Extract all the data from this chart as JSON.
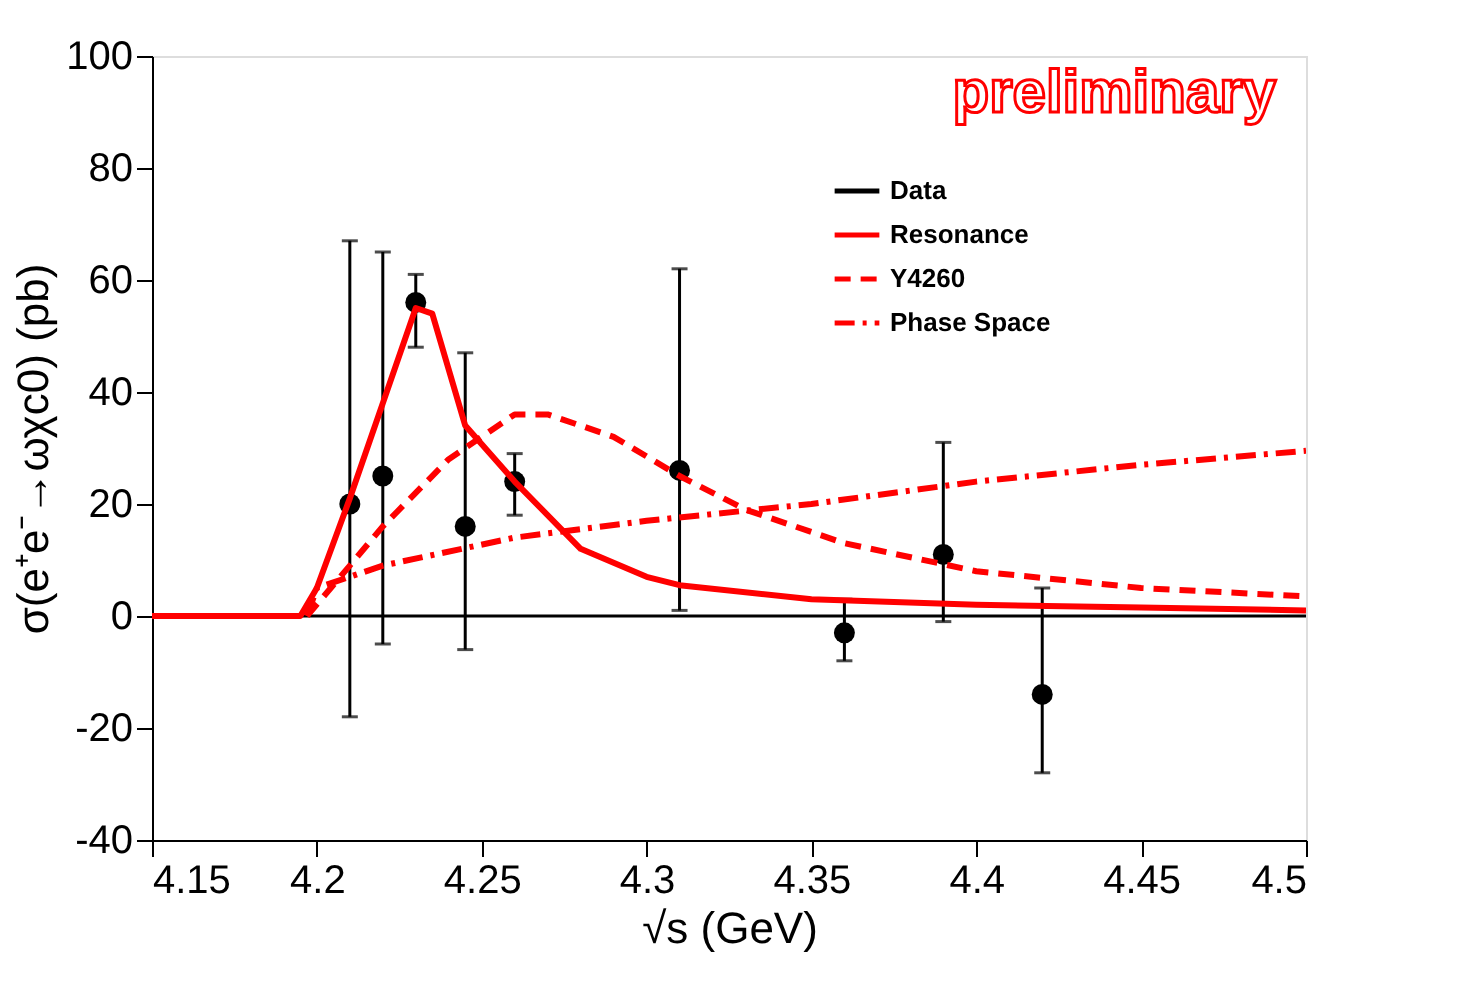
{
  "chart_data": {
    "type": "line",
    "xlabel": "√s (GeV)",
    "ylabel": "σ(e⁺e⁻→ωχc0) (pb)",
    "xlim": [
      4.15,
      4.5
    ],
    "xticks": [
      4.15,
      4.2,
      4.25,
      4.3,
      4.35,
      4.4,
      4.45,
      4.5
    ],
    "ylim": [
      -40,
      100
    ],
    "yticks": [
      -40,
      -20,
      0,
      20,
      40,
      60,
      80,
      100
    ],
    "grid": false,
    "legend": "top right",
    "annotations": [
      "preliminary"
    ],
    "ref_lines": [
      {
        "axis": "y",
        "value": 0,
        "label": null,
        "color": "#000000"
      }
    ],
    "series": [
      {
        "name": "Data",
        "type": "scatter",
        "color": "#000000",
        "marker": "circle",
        "x": [
          4.21,
          4.22,
          4.23,
          4.245,
          4.26,
          4.31,
          4.36,
          4.39,
          4.42
        ],
        "values": [
          20,
          25,
          56,
          16,
          24,
          26,
          -3,
          11,
          -14
        ],
        "errors": [
          [
            -18,
            67
          ],
          [
            -5,
            65
          ],
          [
            48,
            61
          ],
          [
            -6,
            47
          ],
          [
            18,
            29
          ],
          [
            1,
            62
          ],
          [
            -8,
            3
          ],
          [
            -1,
            31
          ],
          [
            -28,
            5
          ]
        ]
      },
      {
        "name": "Resonance",
        "color": "#ff0000",
        "line_style": "solid",
        "x": [
          4.15,
          4.195,
          4.2,
          4.21,
          4.22,
          4.23,
          4.235,
          4.245,
          4.26,
          4.28,
          4.3,
          4.31,
          4.35,
          4.4,
          4.45,
          4.5
        ],
        "values": [
          0,
          0,
          5,
          21,
          38,
          55,
          54,
          34,
          24,
          12,
          7,
          5.5,
          3,
          2,
          1.5,
          1
        ]
      },
      {
        "name": "Y4260",
        "color": "#ff0000",
        "line_style": "dashed",
        "x": [
          4.197,
          4.21,
          4.22,
          4.24,
          4.26,
          4.27,
          4.29,
          4.31,
          4.33,
          4.36,
          4.4,
          4.45,
          4.5
        ],
        "values": [
          0,
          9,
          16,
          28,
          36,
          36,
          32,
          25,
          19,
          13,
          8,
          5,
          3.5
        ]
      },
      {
        "name": "Phase Space",
        "color": "#ff0000",
        "line_style": "dashdot",
        "x": [
          4.197,
          4.2,
          4.22,
          4.26,
          4.3,
          4.35,
          4.4,
          4.45,
          4.5
        ],
        "values": [
          0,
          5,
          9,
          14,
          17,
          20,
          24,
          27,
          29.5
        ]
      }
    ]
  }
}
